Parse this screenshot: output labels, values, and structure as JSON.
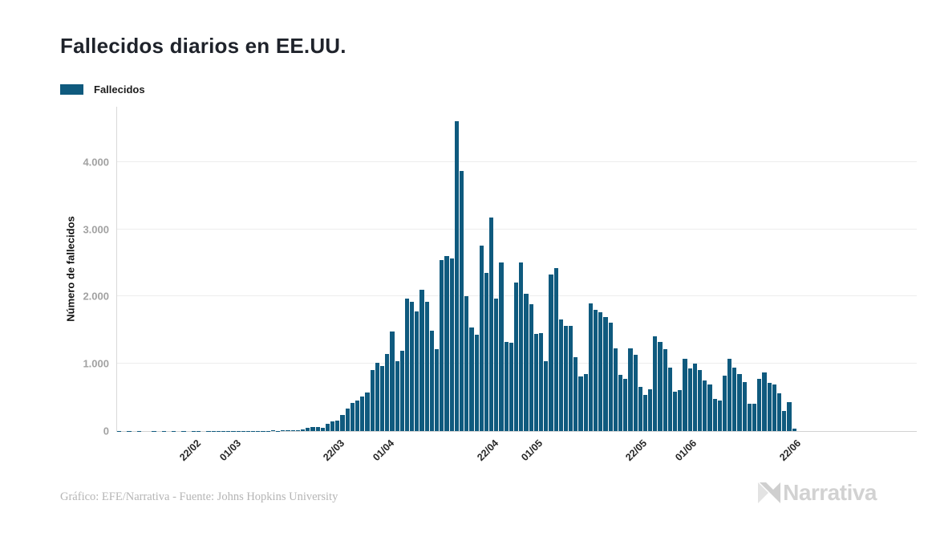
{
  "header": {
    "title": "Fallecidos diarios en EE.UU."
  },
  "legend": {
    "label": "Fallecidos",
    "swatch_color": "#0f5a7e"
  },
  "chart_data": {
    "type": "bar",
    "title": "Fallecidos diarios en EE.UU.",
    "xlabel": "",
    "ylabel": "Número de fallecidos",
    "ylim": [
      0,
      4821
    ],
    "grid": "horizontal",
    "legend_position": "top-left",
    "y_ticks": [
      {
        "value": 0,
        "label": "0"
      },
      {
        "value": 1000,
        "label": "1.000"
      },
      {
        "value": 2000,
        "label": "2.000"
      },
      {
        "value": 3000,
        "label": "3.000"
      },
      {
        "value": 4000,
        "label": "4.000"
      }
    ],
    "x_ticks": [
      {
        "index": 13,
        "label": "22/02"
      },
      {
        "index": 21,
        "label": "01/03"
      },
      {
        "index": 42,
        "label": "22/03"
      },
      {
        "index": 52,
        "label": "01/04"
      },
      {
        "index": 73,
        "label": "22/04"
      },
      {
        "index": 82,
        "label": "01/05"
      },
      {
        "index": 103,
        "label": "22/05"
      },
      {
        "index": 113,
        "label": "01/06"
      },
      {
        "index": 134,
        "label": "22/06"
      }
    ],
    "series": [
      {
        "name": "Fallecidos",
        "color": "#0f5a7e",
        "values": [
          1,
          0,
          1,
          0,
          1,
          0,
          0,
          1,
          0,
          1,
          0,
          1,
          0,
          1,
          0,
          1,
          1,
          0,
          1,
          1,
          2,
          1,
          4,
          2,
          3,
          2,
          3,
          3,
          4,
          3,
          5,
          7,
          5,
          8,
          10,
          12,
          18,
          25,
          42,
          55,
          60,
          50,
          110,
          140,
          160,
          240,
          335,
          420,
          450,
          510,
          570,
          905,
          1010,
          970,
          1140,
          1480,
          1030,
          1190,
          1960,
          1920,
          1770,
          2100,
          1920,
          1490,
          1210,
          2540,
          2600,
          2560,
          4591,
          3857,
          2000,
          1540,
          1430,
          2750,
          2340,
          3170,
          1960,
          2500,
          1320,
          1310,
          2200,
          2500,
          2040,
          1880,
          1440,
          1450,
          1030,
          2320,
          2420,
          1660,
          1560,
          1560,
          1100,
          810,
          850,
          1890,
          1800,
          1760,
          1690,
          1610,
          1230,
          830,
          770,
          1230,
          1130,
          650,
          535,
          620,
          1400,
          1320,
          1215,
          940,
          580,
          605,
          1070,
          930,
          1000,
          905,
          750,
          690,
          475,
          450,
          820,
          1070,
          940,
          845,
          730,
          405,
          405,
          770,
          870,
          715,
          690,
          560,
          300,
          430,
          35,
          0,
          0,
          0
        ]
      }
    ]
  },
  "footer": {
    "credit": "Gráfico: EFE/Narrativa - Fuente: Johns Hopkins University",
    "brand": "Narrativa"
  },
  "colors": {
    "bar": "#0f5a7e",
    "grid": "#ededed",
    "axis": "#d2d2d2",
    "y_tick_text": "#a2a2a2",
    "x_tick_text": "#262626",
    "title_text": "#1f232b",
    "footer_text": "#b5b5b5",
    "brand_text": "#d2d2d2"
  }
}
